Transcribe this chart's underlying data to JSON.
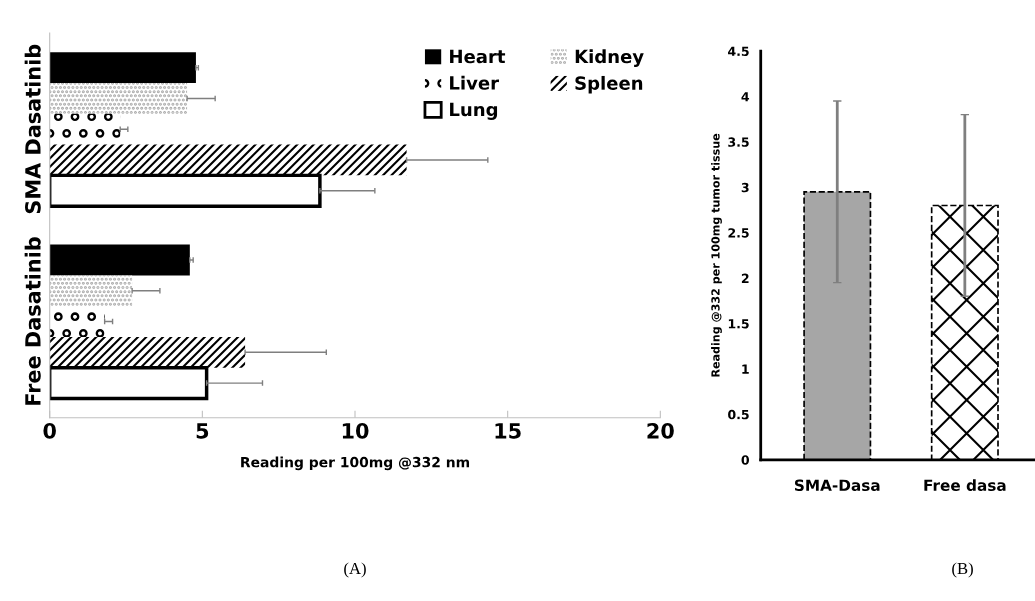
{
  "chart_data": [
    {
      "type": "bar",
      "orientation": "horizontal",
      "categories": [
        "SMA Dasatinib",
        "Free Dasatinib"
      ],
      "xlabel": "Reading per 100mg @332 nm",
      "xlim": [
        0,
        20
      ],
      "xticks": [
        0,
        5,
        10,
        15,
        20
      ],
      "grid": false,
      "legend": "top right",
      "annotations": [
        "(A)"
      ],
      "series": [
        {
          "name": "Heart",
          "color": "#000000",
          "values": [
            4.79,
            4.59
          ],
          "errors": [
            [
              4.79,
              4.87
            ],
            [
              4.59,
              4.7
            ]
          ]
        },
        {
          "name": "Kidney",
          "color": "#a6a6a6",
          "values": [
            4.5,
            2.7
          ],
          "errors": [
            [
              4.5,
              5.42
            ],
            [
              2.7,
              3.61
            ]
          ]
        },
        {
          "name": "Liver",
          "color": "#000000",
          "values": [
            2.31,
            1.8
          ],
          "errors": [
            [
              2.31,
              2.56
            ],
            [
              1.8,
              2.06
            ]
          ]
        },
        {
          "name": "Spleen",
          "color": "#000000",
          "values": [
            11.69,
            6.4
          ],
          "errors": [
            [
              11.69,
              14.35
            ],
            [
              6.4,
              9.06
            ]
          ]
        },
        {
          "name": "Lung",
          "color": "#ffffff",
          "values": [
            8.85,
            5.14
          ],
          "errors": [
            [
              8.85,
              10.65
            ],
            [
              5.14,
              6.97
            ]
          ]
        }
      ]
    },
    {
      "type": "bar",
      "categories": [
        "SMA-Dasa",
        "Free dasa"
      ],
      "ylabel": "Reading @332 per 100mg tumor tissue",
      "ylim": [
        0,
        4.5
      ],
      "yticks": [
        0,
        0.5,
        1,
        1.5,
        2,
        2.5,
        3,
        3.5,
        4,
        4.5
      ],
      "grid": false,
      "annotations": [
        "(B)"
      ],
      "values": [
        2.95,
        2.8
      ],
      "errors": [
        1.0,
        1.0
      ],
      "colors": [
        "#a6a6a6",
        "#000000"
      ]
    }
  ]
}
